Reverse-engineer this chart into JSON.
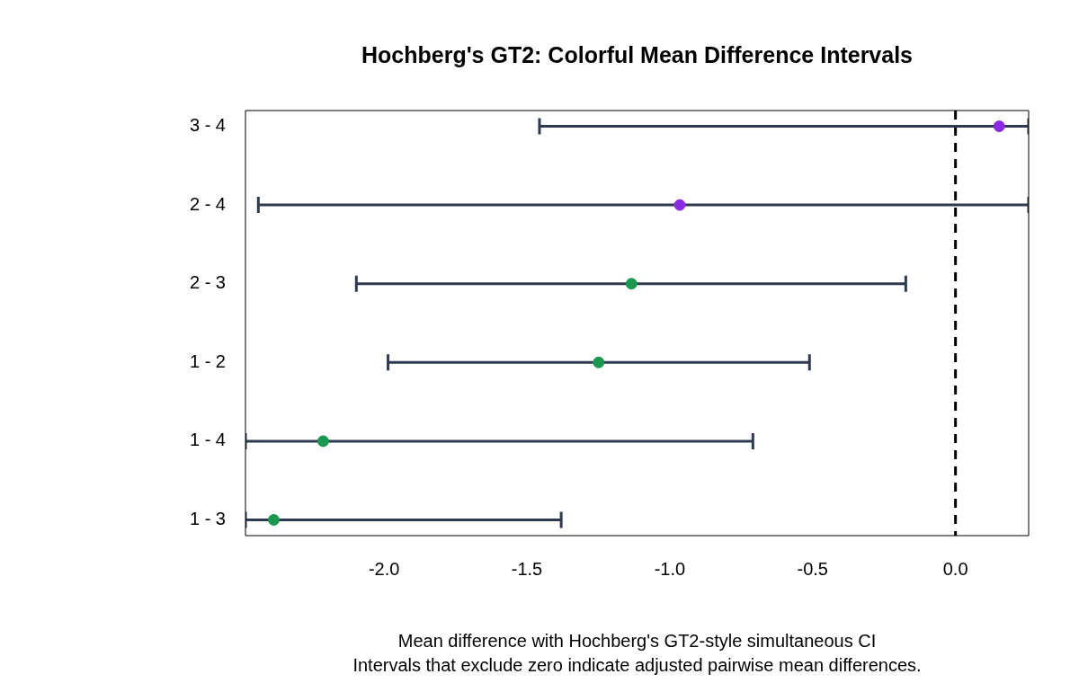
{
  "chart_data": {
    "type": "scatter",
    "orientation": "horizontal",
    "title": "Hochberg's GT2: Colorful Mean Difference Intervals",
    "xlabel": "Mean difference with Hochberg's GT2-style simultaneous CI",
    "annotations": [
      "Intervals that exclude zero indicate adjusted pairwise mean differences."
    ],
    "categories": [
      "3 - 4",
      "2 - 4",
      "2 - 3",
      "1 - 2",
      "1 - 4",
      "1 - 3"
    ],
    "values": [
      0.153,
      -0.965,
      -1.134,
      -1.249,
      -2.213,
      -2.386
    ],
    "colors": [
      "#8a2be2",
      "#8a2be2",
      "#1a9850",
      "#1a9850",
      "#1a9850",
      "#1a9850"
    ],
    "errors": [
      [
        -1.456,
        0.256
      ],
      [
        -2.44,
        0.256
      ],
      [
        -2.097,
        -0.174
      ],
      [
        -1.986,
        -0.511
      ],
      [
        -2.485,
        -0.709
      ],
      [
        -2.485,
        -1.38
      ]
    ],
    "xlim": [
      -2.485,
      0.256
    ],
    "xticks": [
      {
        "value": -2,
        "label": "-2.0"
      },
      {
        "value": -1.5,
        "label": "-1.5"
      },
      {
        "value": -1,
        "label": "-1.0"
      },
      {
        "value": -0.5,
        "label": "-0.5"
      },
      {
        "value": 0,
        "label": "0.0"
      }
    ],
    "ref_lines": [
      {
        "axis": "x",
        "value": 0,
        "color": "#000000",
        "line_style": "dashed"
      }
    ],
    "marker": "circle",
    "grid": false,
    "legend": false
  }
}
